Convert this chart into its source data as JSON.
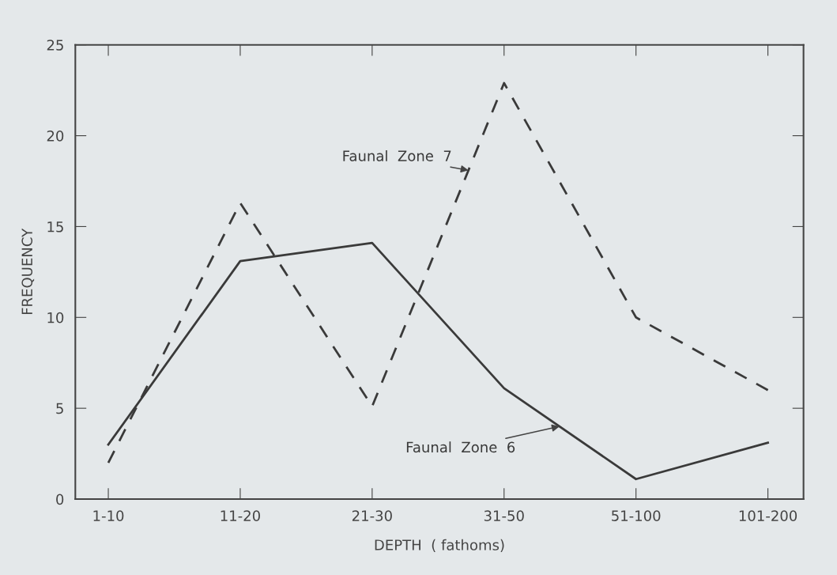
{
  "chart_data": {
    "type": "line",
    "xlabel": "DEPTH  ( fathoms)",
    "ylabel": "FREQUENCY",
    "categories": [
      "1-10",
      "11-20",
      "21-30",
      "31-50",
      "51-100",
      "101-200"
    ],
    "series": [
      {
        "name": "Faunal  Zone  6",
        "color": "#3a3a3a",
        "line_style": "solid",
        "values": [
          3.0,
          13.1,
          14.1,
          6.1,
          1.1,
          3.1
        ]
      },
      {
        "name": "Faunal  Zone  7",
        "color": "#3a3a3a",
        "line_style": "dashed",
        "values": [
          2.0,
          16.3,
          5.1,
          22.9,
          10.0,
          6.0
        ]
      }
    ],
    "ylim": [
      0,
      25
    ],
    "yticks": [
      0,
      5,
      10,
      15,
      20,
      25
    ],
    "grid": false,
    "marker": "none"
  }
}
